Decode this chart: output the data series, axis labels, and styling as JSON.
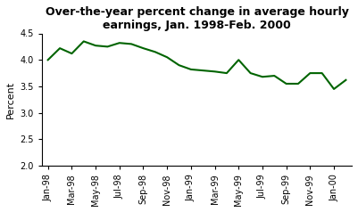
{
  "title": "Over-the-year percent change in average hourly\nearnings, Jan. 1998-Feb. 2000",
  "ylabel": "Percent",
  "ylim": [
    2.0,
    4.5
  ],
  "yticks": [
    2.0,
    2.5,
    3.0,
    3.5,
    4.0,
    4.5
  ],
  "line_color": "#006400",
  "line_width": 1.5,
  "background_color": "#ffffff",
  "x_labels": [
    "Jan-98",
    "Mar-98",
    "May-98",
    "Jul-98",
    "Sep-98",
    "Nov-98",
    "Jan-99",
    "Mar-99",
    "May-99",
    "Jul-99",
    "Sep-99",
    "Nov-99",
    "Jan-00"
  ],
  "values": [
    4.0,
    4.22,
    4.12,
    4.35,
    4.27,
    4.25,
    4.32,
    4.3,
    4.22,
    4.15,
    4.05,
    3.9,
    3.82,
    3.8,
    3.78,
    3.75,
    4.0,
    3.75,
    3.68,
    3.7,
    3.55,
    3.55,
    3.75,
    3.75,
    3.45,
    3.62
  ],
  "title_fontsize": 9,
  "ylabel_fontsize": 8,
  "tick_fontsize": 7
}
